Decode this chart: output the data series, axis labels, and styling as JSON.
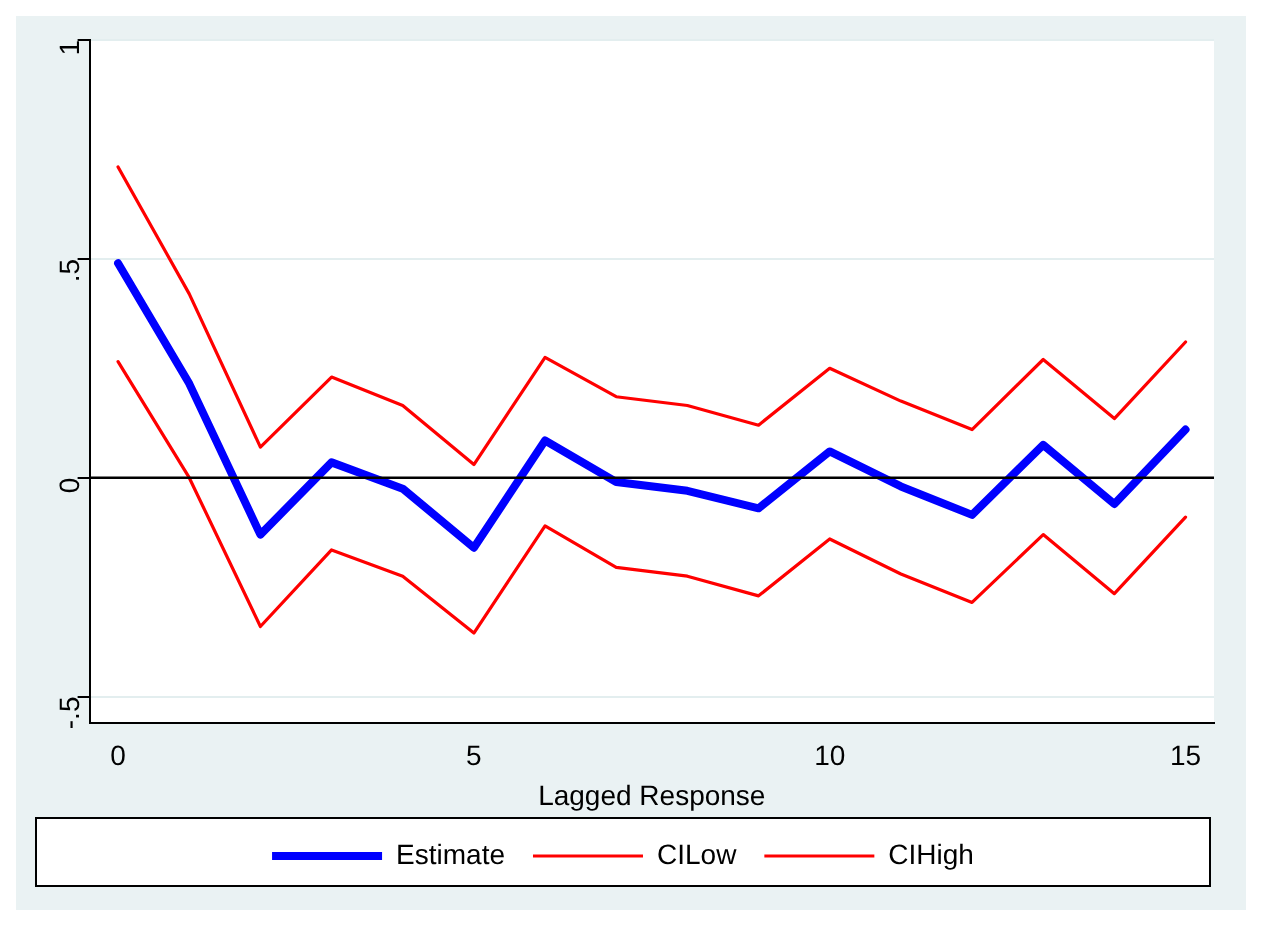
{
  "chart_data": {
    "type": "line",
    "xlabel": "Lagged Response",
    "x": [
      0,
      1,
      2,
      3,
      4,
      5,
      6,
      7,
      8,
      9,
      10,
      11,
      12,
      13,
      14,
      15
    ],
    "series": [
      {
        "name": "Estimate",
        "color": "#0000ff",
        "values": [
          0.49,
          0.215,
          -0.13,
          0.035,
          -0.025,
          -0.16,
          0.085,
          -0.01,
          -0.03,
          -0.07,
          0.06,
          -0.02,
          -0.085,
          0.075,
          -0.06,
          0.11
        ]
      },
      {
        "name": "CILow",
        "color": "#ff0000",
        "values": [
          0.265,
          0.0,
          -0.34,
          -0.165,
          -0.225,
          -0.355,
          -0.11,
          -0.205,
          -0.225,
          -0.27,
          -0.14,
          -0.22,
          -0.285,
          -0.13,
          -0.265,
          -0.09
        ]
      },
      {
        "name": "CIHigh",
        "color": "#ff0000",
        "values": [
          0.71,
          0.42,
          0.07,
          0.23,
          0.165,
          0.03,
          0.275,
          0.185,
          0.165,
          0.12,
          0.25,
          0.175,
          0.11,
          0.27,
          0.135,
          0.31
        ]
      }
    ],
    "xlim": [
      -0.4,
      15.4
    ],
    "xticks": [
      0,
      5,
      10,
      15
    ],
    "ylim": [
      -0.56,
      1
    ],
    "yticks": [
      {
        "value": -0.5,
        "label": "-.5"
      },
      0,
      {
        "value": 0.5,
        "label": ".5"
      },
      1
    ],
    "ref_lines": [
      {
        "axis": "y",
        "value": 0,
        "color": "#000000"
      }
    ],
    "grid": "y",
    "legend": "bottom",
    "marker": "none",
    "line_style": "solid"
  }
}
